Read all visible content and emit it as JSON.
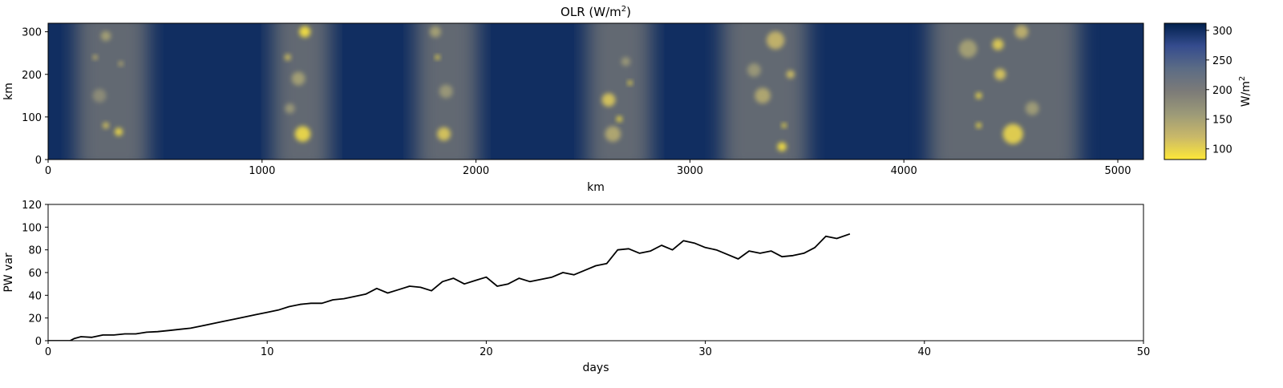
{
  "chart_data": [
    {
      "type": "heatmap",
      "title": "OLR (W/m²)",
      "title_main": "OLR (W/m",
      "title_sup": "2",
      "title_end": ")",
      "xlabel": "km",
      "ylabel": "km",
      "xlim": [
        0,
        5120
      ],
      "ylim": [
        0,
        320
      ],
      "xticks": [
        0,
        1000,
        2000,
        3000,
        4000,
        5000
      ],
      "yticks": [
        0,
        100,
        200,
        300
      ],
      "colorbar": {
        "label_main": "W/m",
        "label_sup": "2",
        "ticks": [
          100,
          150,
          200,
          250,
          300
        ],
        "range": [
          82,
          312
        ],
        "colormap": "cividis_r",
        "colors": [
          "#FEE838",
          "#C9B869",
          "#9C9A78",
          "#7C7B78",
          "#5C6C85",
          "#354C8E",
          "#00204D"
        ]
      },
      "clear_sky_value": 300,
      "cloud_bands": [
        {
          "x_min": 130,
          "x_max": 470
        },
        {
          "x_min": 1050,
          "x_max": 1320
        },
        {
          "x_min": 1720,
          "x_max": 2010
        },
        {
          "x_min": 2520,
          "x_max": 2820
        },
        {
          "x_min": 3150,
          "x_max": 3550
        },
        {
          "x_min": 4120,
          "x_max": 4820
        }
      ],
      "convective_cells": [
        {
          "x": 270,
          "y": 290,
          "r": 22,
          "olr": 150
        },
        {
          "x": 220,
          "y": 240,
          "r": 8,
          "olr": 120
        },
        {
          "x": 340,
          "y": 225,
          "r": 10,
          "olr": 130
        },
        {
          "x": 270,
          "y": 80,
          "r": 14,
          "olr": 110
        },
        {
          "x": 330,
          "y": 65,
          "r": 18,
          "olr": 95
        },
        {
          "x": 240,
          "y": 150,
          "r": 30,
          "olr": 175
        },
        {
          "x": 1200,
          "y": 300,
          "r": 25,
          "olr": 90
        },
        {
          "x": 1120,
          "y": 240,
          "r": 14,
          "olr": 110
        },
        {
          "x": 1170,
          "y": 190,
          "r": 30,
          "olr": 150
        },
        {
          "x": 1190,
          "y": 60,
          "r": 35,
          "olr": 95
        },
        {
          "x": 1130,
          "y": 120,
          "r": 22,
          "olr": 160
        },
        {
          "x": 1810,
          "y": 300,
          "r": 25,
          "olr": 150
        },
        {
          "x": 1820,
          "y": 240,
          "r": 9,
          "olr": 95
        },
        {
          "x": 1860,
          "y": 160,
          "r": 30,
          "olr": 160
        },
        {
          "x": 1850,
          "y": 60,
          "r": 30,
          "olr": 110
        },
        {
          "x": 2620,
          "y": 140,
          "r": 30,
          "olr": 110
        },
        {
          "x": 2670,
          "y": 95,
          "r": 13,
          "olr": 90
        },
        {
          "x": 2720,
          "y": 180,
          "r": 10,
          "olr": 95
        },
        {
          "x": 2640,
          "y": 60,
          "r": 35,
          "olr": 140
        },
        {
          "x": 2700,
          "y": 230,
          "r": 20,
          "olr": 160
        },
        {
          "x": 3400,
          "y": 280,
          "r": 40,
          "olr": 125
        },
        {
          "x": 3340,
          "y": 150,
          "r": 35,
          "olr": 140
        },
        {
          "x": 3440,
          "y": 80,
          "r": 10,
          "olr": 90
        },
        {
          "x": 3430,
          "y": 30,
          "r": 20,
          "olr": 90
        },
        {
          "x": 3300,
          "y": 210,
          "r": 30,
          "olr": 160
        },
        {
          "x": 3470,
          "y": 200,
          "r": 18,
          "olr": 115
        },
        {
          "x": 4440,
          "y": 270,
          "r": 25,
          "olr": 105
        },
        {
          "x": 4450,
          "y": 200,
          "r": 25,
          "olr": 110
        },
        {
          "x": 4350,
          "y": 150,
          "r": 14,
          "olr": 95
        },
        {
          "x": 4350,
          "y": 80,
          "r": 12,
          "olr": 90
        },
        {
          "x": 4510,
          "y": 60,
          "r": 45,
          "olr": 100
        },
        {
          "x": 4300,
          "y": 260,
          "r": 40,
          "olr": 150
        },
        {
          "x": 4600,
          "y": 120,
          "r": 30,
          "olr": 155
        },
        {
          "x": 4550,
          "y": 300,
          "r": 30,
          "olr": 130
        }
      ]
    },
    {
      "type": "line",
      "title": "",
      "xlabel": "days",
      "ylabel": "PW var",
      "xlim": [
        0,
        50
      ],
      "ylim": [
        0,
        120
      ],
      "xticks": [
        0,
        10,
        20,
        30,
        40,
        50
      ],
      "yticks": [
        0,
        20,
        40,
        60,
        80,
        100,
        120
      ],
      "series": [
        {
          "color": "#000000",
          "x": [
            0,
            0.5,
            1.0,
            1.2,
            1.5,
            2.0,
            2.5,
            3.0,
            3.5,
            4.0,
            4.5,
            5.0,
            5.5,
            6.0,
            6.5,
            7.0,
            7.5,
            8.0,
            8.5,
            9.0,
            9.5,
            10.0,
            10.5,
            11.0,
            11.5,
            12.0,
            12.5,
            13.0,
            13.5,
            14.0,
            14.5,
            15.0,
            15.5,
            16.0,
            16.5,
            17.0,
            17.5,
            18.0,
            18.5,
            19.0,
            19.5,
            20.0,
            20.5,
            21.0,
            21.5,
            22.0,
            22.5,
            23.0,
            23.5,
            24.0,
            24.5,
            25.0,
            25.5,
            26.0,
            26.5,
            27.0,
            27.5,
            28.0,
            28.5,
            29.0,
            29.5,
            30.0,
            30.5,
            31.0,
            31.5,
            32.0,
            32.5,
            33.0,
            33.5,
            34.0,
            34.5,
            35.0,
            35.5,
            36.0,
            36.6
          ],
          "y": [
            0,
            0,
            0,
            2,
            3.5,
            3,
            5,
            5,
            6,
            6,
            7.5,
            8,
            9,
            10,
            11,
            13,
            15,
            17,
            19,
            21,
            23,
            25,
            27,
            30,
            32,
            33,
            33,
            36,
            37,
            39,
            41,
            46,
            42,
            45,
            48,
            47,
            44,
            52,
            55,
            50,
            53,
            56,
            48,
            50,
            55,
            52,
            54,
            56,
            60,
            58,
            62,
            66,
            68,
            80,
            81,
            77,
            79,
            84,
            80,
            88,
            86,
            82,
            80,
            76,
            72,
            79,
            77,
            79,
            74,
            75,
            77,
            82,
            92,
            90,
            94
          ]
        }
      ]
    }
  ]
}
